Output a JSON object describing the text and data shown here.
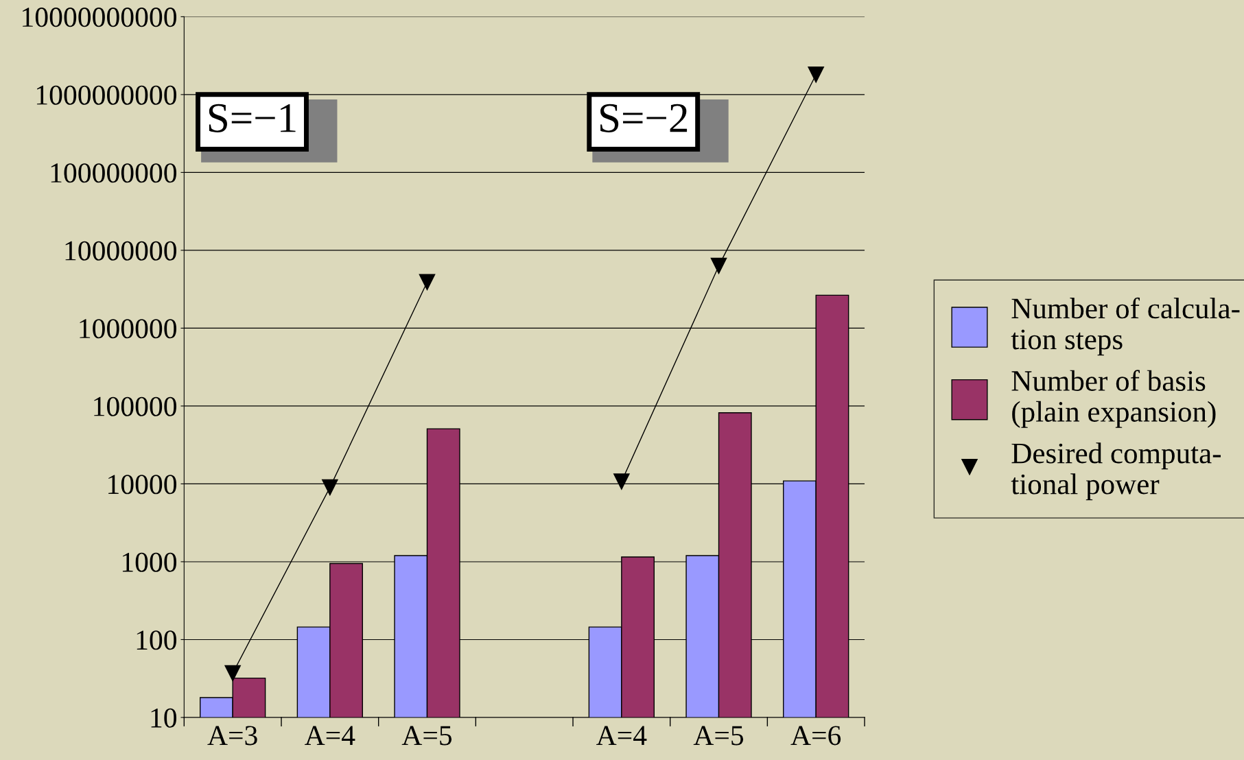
{
  "chart_data": {
    "type": "bar",
    "categories": [
      "A=3",
      "A=4",
      "A=5",
      null,
      "A=4",
      "A=5",
      "A=6"
    ],
    "series": [
      {
        "name": "Number of calcula-\ntion steps",
        "color": "#9999ff",
        "values": [
          18,
          145,
          1200,
          null,
          145,
          1200,
          10900
        ]
      },
      {
        "name": "Number of basis\n(plain expansion)",
        "color": "#993366",
        "values": [
          32,
          950,
          51000,
          null,
          1150,
          82000,
          2650000
        ]
      },
      {
        "name": "Desired computa-\ntional power",
        "type": "line",
        "color": "#000000",
        "marker": "triangle",
        "values": [
          37,
          9000,
          3900000,
          null,
          10700,
          6300000,
          1800000000
        ]
      }
    ],
    "log": true,
    "ylim": [
      10,
      10000000000
    ],
    "yticks": [
      10,
      100,
      1000,
      10000,
      100000,
      1000000,
      10000000,
      100000000,
      1000000000,
      10000000000
    ],
    "grid": "y",
    "legend": "right",
    "annotations": [
      "S=−1",
      "S=−2"
    ]
  }
}
